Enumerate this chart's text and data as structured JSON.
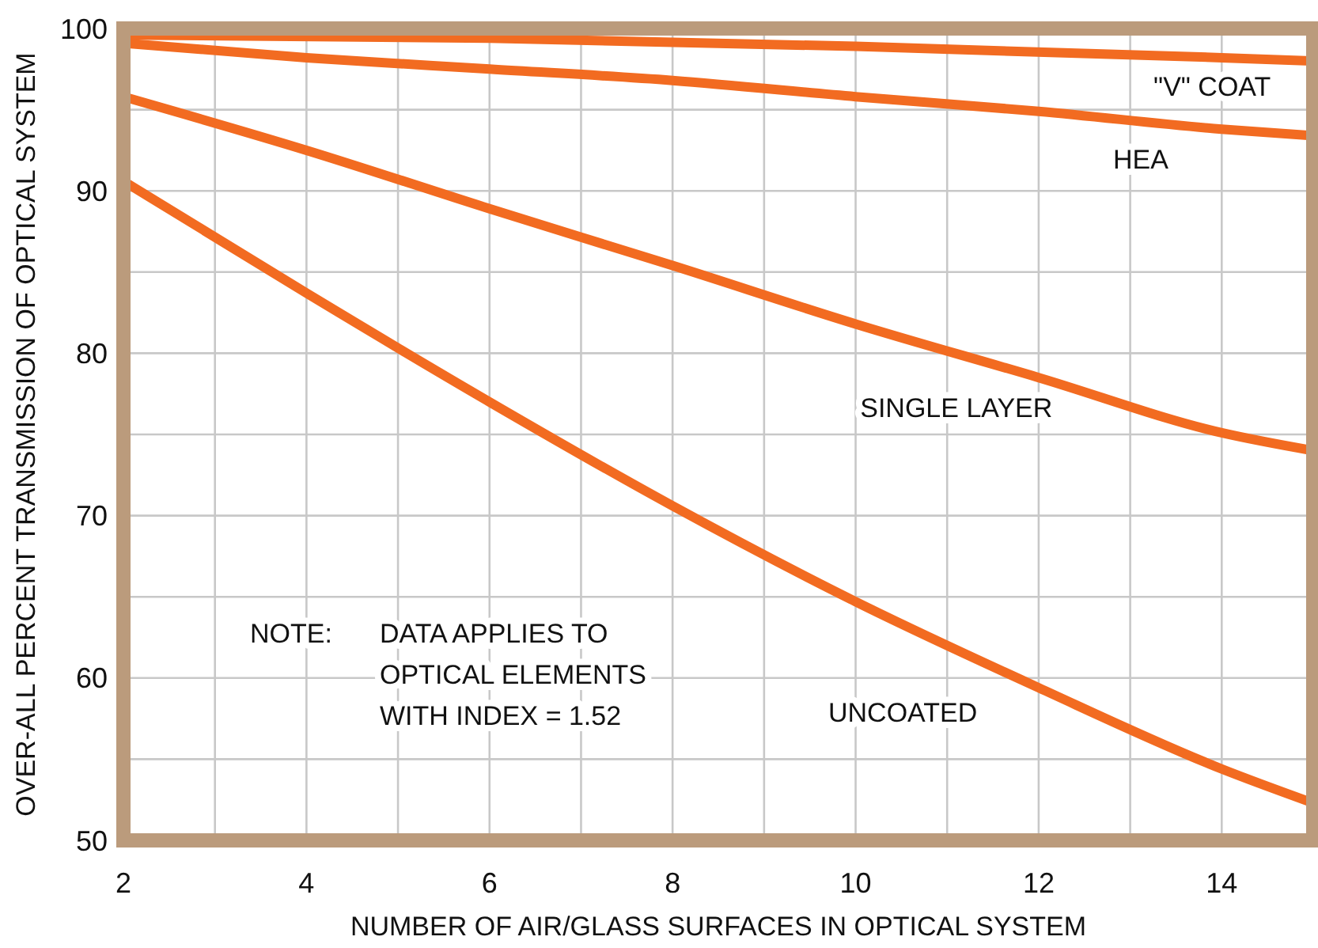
{
  "chart_data": {
    "type": "line",
    "xlabel": "NUMBER OF AIR/GLASS SURFACES IN OPTICAL SYSTEM",
    "ylabel": "OVER-ALL PERCENT TRANSMISSION OF OPTICAL SYSTEM",
    "xlim": [
      2,
      15
    ],
    "ylim": [
      50,
      100
    ],
    "xticks": [
      2,
      {
        "value": 3,
        "label": null
      },
      4,
      {
        "value": 5,
        "label": null
      },
      6,
      {
        "value": 7,
        "label": null
      },
      8,
      {
        "value": 9,
        "label": null
      },
      10,
      {
        "value": 11,
        "label": null
      },
      12,
      {
        "value": 13,
        "label": null
      },
      14
    ],
    "yticks": [
      50,
      {
        "value": 55,
        "label": null
      },
      60,
      {
        "value": 65,
        "label": null
      },
      70,
      {
        "value": 75,
        "label": null
      },
      80,
      {
        "value": 85,
        "label": null
      },
      90,
      {
        "value": 95,
        "label": null
      },
      100
    ],
    "grid": true,
    "line_style": "solid",
    "marker": "none",
    "series": [
      {
        "name": "\"V\" COAT",
        "color": "#f26b21",
        "x": [
          2,
          6,
          10,
          14,
          15
        ],
        "values": [
          99.6,
          99.4,
          98.9,
          98.2,
          98.0
        ]
      },
      {
        "name": "HEA",
        "color": "#f26b21",
        "x": [
          2,
          4,
          6,
          8,
          10,
          12,
          14,
          15
        ],
        "values": [
          99.1,
          98.2,
          97.5,
          96.8,
          95.8,
          94.9,
          93.8,
          93.4
        ]
      },
      {
        "name": "SINGLE LAYER",
        "color": "#f26b21",
        "x": [
          2,
          4,
          6,
          8,
          10,
          12,
          14,
          15
        ],
        "values": [
          95.8,
          92.5,
          88.9,
          85.4,
          81.8,
          78.5,
          75.1,
          74.0
        ]
      },
      {
        "name": "UNCOATED",
        "color": "#f26b21",
        "x": [
          2,
          4,
          6,
          8,
          10,
          12,
          14,
          15
        ],
        "values": [
          90.6,
          83.7,
          77.0,
          70.6,
          64.7,
          59.4,
          54.4,
          52.3
        ]
      }
    ],
    "annotations": [
      "NOTE:   DATA APPLIES TO\nOPTICAL ELEMENTS\nWITH INDEX = 1.52"
    ]
  }
}
